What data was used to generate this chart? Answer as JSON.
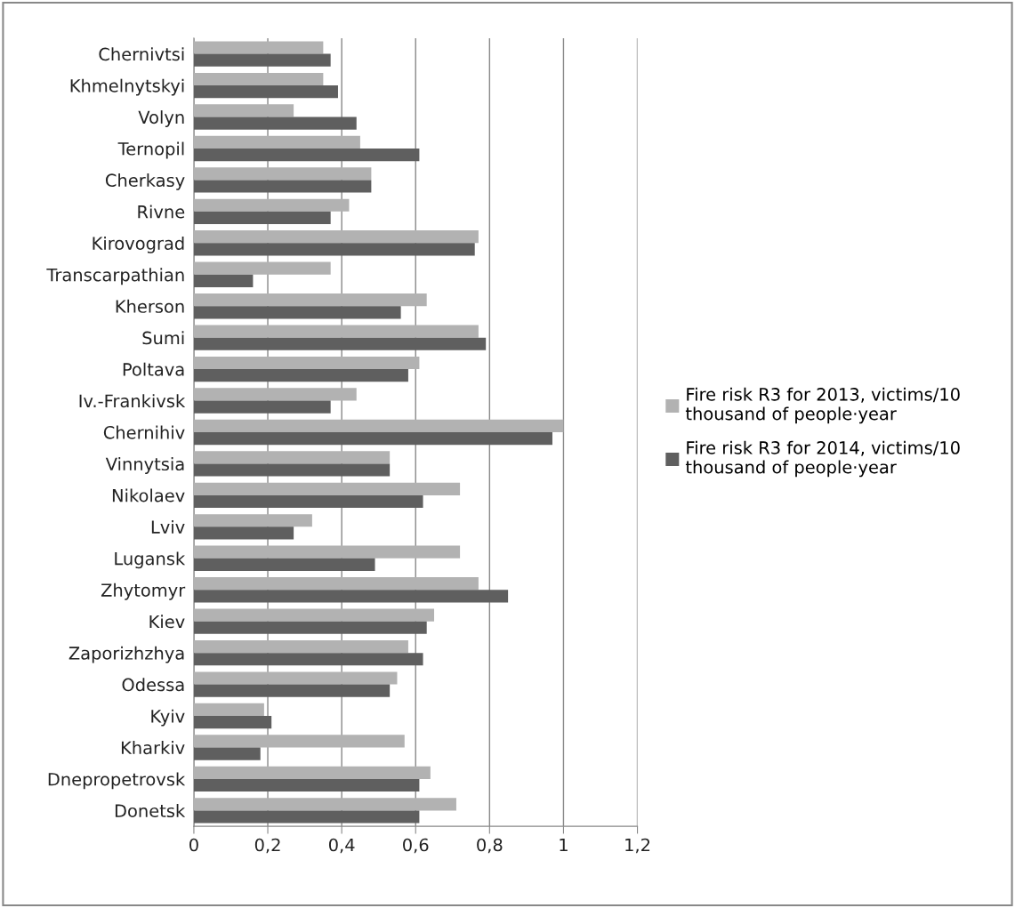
{
  "chart_data": {
    "type": "bar",
    "orientation": "horizontal",
    "categories": [
      "Chernivtsi",
      "Khmelnytskyi",
      "Volyn",
      "Ternopil",
      "Cherkasy",
      "Rivne",
      "Kirovograd",
      "Transcarpathian",
      "Kherson",
      "Sumi",
      "Poltava",
      "Iv.-Frankivsk",
      "Chernihiv",
      "Vinnytsia",
      "Nikolaev",
      "Lviv",
      "Lugansk",
      "Zhytomyr",
      "Kiev",
      "Zaporizhzhya",
      "Odessa",
      "Kyiv",
      "Kharkiv",
      "Dnepropetrovsk",
      "Donetsk"
    ],
    "series": [
      {
        "name": "Fire risk R3 for 2013, victims/10\nthousand of people·year",
        "color": "#b2b2b2",
        "values": [
          0.35,
          0.35,
          0.27,
          0.45,
          0.48,
          0.42,
          0.77,
          0.37,
          0.63,
          0.77,
          0.61,
          0.44,
          1.0,
          0.53,
          0.72,
          0.32,
          0.72,
          0.77,
          0.65,
          0.58,
          0.55,
          0.19,
          0.57,
          0.64,
          0.71
        ]
      },
      {
        "name": "Fire risk R3 for 2014, victims/10\nthousand of people·year",
        "color": "#5f5f5f",
        "values": [
          0.37,
          0.39,
          0.44,
          0.61,
          0.48,
          0.37,
          0.76,
          0.16,
          0.56,
          0.79,
          0.58,
          0.37,
          0.97,
          0.53,
          0.62,
          0.27,
          0.49,
          0.85,
          0.63,
          0.62,
          0.53,
          0.21,
          0.18,
          0.61,
          0.61
        ]
      }
    ],
    "xlim": [
      0,
      1.2
    ],
    "xticks": [
      {
        "value": 0,
        "label": "0"
      },
      {
        "value": 0.2,
        "label": "0,2"
      },
      {
        "value": 0.4,
        "label": "0,4"
      },
      {
        "value": 0.6,
        "label": "0,6"
      },
      {
        "value": 0.8,
        "label": "0,8"
      },
      {
        "value": 1,
        "label": "1"
      },
      {
        "value": 1.2,
        "label": "1,2"
      }
    ],
    "grid": "x",
    "legend": "right"
  }
}
